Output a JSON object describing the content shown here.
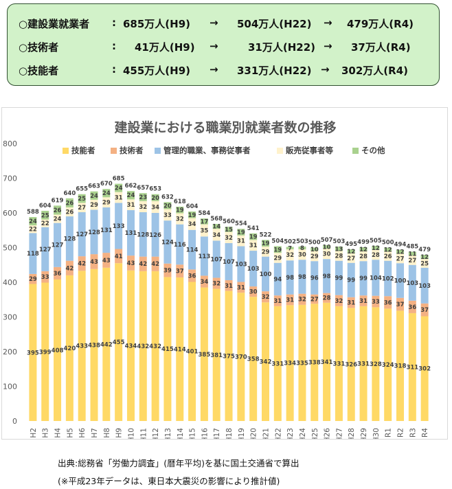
{
  "summary": {
    "rows": [
      {
        "label": "○建設業就業者",
        "colon": ":",
        "v1": "685万人(H9)",
        "arrow1": "→",
        "v2": "504万人(H22)",
        "arrow2": "→",
        "v3": "479万人(R4)"
      },
      {
        "label": "○技術者",
        "colon": ":",
        "v1": "41万人(H9)",
        "arrow1": "→",
        "v2": "31万人(H22)",
        "arrow2": "→",
        "v3": "37万人(R4)"
      },
      {
        "label": "○技能者",
        "colon": ":",
        "v1": "455万人(H9)",
        "arrow1": "→",
        "v2": "331万人(H22)",
        "arrow2": "→",
        "v3": "302万人(R4)"
      }
    ]
  },
  "chart_data": {
    "type": "bar",
    "stacked": true,
    "title": "建設業における職業別就業者数の推移",
    "xlabel": "",
    "ylabel": "",
    "ylim": [
      0,
      800
    ],
    "yticks": [
      0,
      100,
      200,
      300,
      400,
      500,
      600,
      700,
      800
    ],
    "grid": false,
    "legend_position": "top",
    "categories": [
      "H2",
      "H3",
      "H4",
      "H5",
      "H6",
      "H7",
      "H8",
      "H9",
      "H10",
      "H11",
      "H12",
      "H13",
      "H14",
      "H15",
      "H16",
      "H17",
      "H18",
      "H19",
      "H20",
      "H21",
      "H22",
      "H23",
      "H24",
      "H25",
      "H26",
      "H27",
      "H28",
      "H29",
      "H30",
      "R1",
      "R2",
      "R3",
      "R4"
    ],
    "totals": [
      588,
      604,
      619,
      640,
      655,
      663,
      670,
      685,
      662,
      657,
      653,
      632,
      618,
      604,
      584,
      568,
      560,
      554,
      541,
      522,
      504,
      502,
      503,
      500,
      507,
      503,
      495,
      499,
      505,
      500,
      494,
      485,
      479
    ],
    "series": [
      {
        "name": "技能者",
        "color": "#ffd966",
        "values": [
          395,
          399,
          408,
          420,
          433,
          438,
          442,
          455,
          434,
          432,
          432,
          415,
          414,
          401,
          385,
          381,
          375,
          370,
          358,
          342,
          331,
          334,
          335,
          338,
          341,
          331,
          326,
          331,
          328,
          324,
          318,
          311,
          302
        ]
      },
      {
        "name": "技術者",
        "color": "#f4b183",
        "values": [
          29,
          33,
          36,
          42,
          42,
          43,
          43,
          41,
          43,
          42,
          42,
          39,
          37,
          36,
          34,
          32,
          31,
          31,
          30,
          32,
          31,
          31,
          32,
          27,
          28,
          32,
          31,
          31,
          33,
          36,
          37,
          36,
          37
        ]
      },
      {
        "name": "管理的職業、事務従事者",
        "color": "#9dc3e6",
        "values": [
          118,
          127,
          127,
          128,
          127,
          128,
          131,
          133,
          131,
          128,
          126,
          124,
          116,
          114,
          113,
          107,
          107,
          103,
          103,
          100,
          94,
          98,
          98,
          96,
          98,
          99,
          99,
          99,
          104,
          102,
          100,
          103,
          103
        ]
      },
      {
        "name": "販売従事者等",
        "color": "#fff2cc",
        "values": [
          22,
          22,
          24,
          26,
          27,
          29,
          29,
          31,
          31,
          32,
          34,
          33,
          32,
          34,
          35,
          34,
          32,
          31,
          31,
          29,
          29,
          32,
          30,
          29,
          30,
          28,
          27,
          28,
          28,
          26,
          27,
          27,
          25
        ]
      },
      {
        "name": "その他",
        "color": "#a9d18e",
        "values": [
          24,
          25,
          26,
          26,
          25,
          24,
          24,
          24,
          24,
          23,
          20,
          20,
          19,
          19,
          17,
          14,
          15,
          19,
          19,
          19,
          19,
          7,
          8,
          10,
          10,
          13,
          12,
          12,
          12,
          12,
          12,
          11,
          12
        ]
      }
    ]
  },
  "notes": {
    "source": "出典:総務省「労働力調査」(暦年平均)を基に国土交通省で算出",
    "remark": "(※平成23年データは、東日本大震災の影響により推計値)"
  }
}
